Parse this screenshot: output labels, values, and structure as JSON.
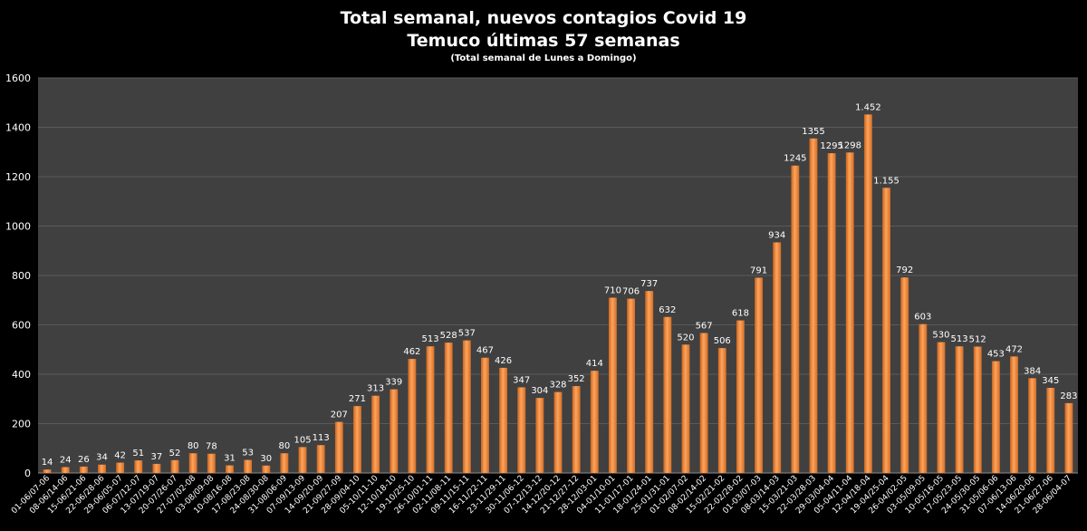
{
  "chart_data": {
    "type": "bar",
    "title": "Total semanal, nuevos contagios Covid 19",
    "subtitle": "Temuco últimas 57 semanas",
    "note": "(Total semanal de Lunes a Domingo)",
    "xlabel": "",
    "ylabel": "",
    "ylim": [
      0,
      1600
    ],
    "yticks": [
      "0",
      "200",
      "400",
      "600",
      "800",
      "1000",
      "1200",
      "1400",
      "1600"
    ],
    "grid": true,
    "legend": "none",
    "bar_color": "#F5873D",
    "plot_background": "#404040",
    "page_background": "#000000",
    "categories": [
      "01-06/07-06",
      "08-06/14-06",
      "15-06/21-06",
      "22-06/28-06",
      "29-06/05-07",
      "06-07/12-07",
      "13-07/19-07",
      "20-07/26-07",
      "27-07/02-08",
      "03-08/09-08",
      "10-08/16-08",
      "17-08/23-08",
      "24-08/30-08",
      "31-08/06-09",
      "07-09/13-09",
      "14-09/20-09",
      "21-09/27-09",
      "28-09/04-10",
      "05-10/11-10",
      "12-10/18-10",
      "19-10/25-10",
      "26-10/01-11",
      "02-11/08-11",
      "09-11/15-11",
      "16-11/22-11",
      "23-11/29-11",
      "30-11/06-12",
      "07-12/13-12",
      "14-12/20-12",
      "21-12/27-12",
      "28-12/03-01",
      "04-01/10-01",
      "11-01/17-01",
      "18-01/24-01",
      "25-01/31-01",
      "01-02/07-02",
      "08-02/14-02",
      "15-02/21-02",
      "22-02/28-02",
      "01-03/07-03",
      "08-03/14-03",
      "15-03/21-03",
      "22-03/28-03",
      "29-03/04-04",
      "05-04/11-04",
      "12-04/18-04",
      "19-04/25-04",
      "26-04/02-05",
      "03-05/09-05",
      "10-05/16-05",
      "17-05/23-05",
      "24-05/30-05",
      "31-05/06-06",
      "07-06/13-06",
      "14-06/20-06",
      "21-06/27-06",
      "28-06/04-07"
    ],
    "values": [
      14,
      24,
      26,
      34,
      42,
      51,
      37,
      52,
      80,
      78,
      31,
      53,
      30,
      80,
      105,
      113,
      207,
      271,
      313,
      339,
      462,
      513,
      528,
      537,
      467,
      426,
      347,
      304,
      328,
      352,
      414,
      710,
      706,
      737,
      632,
      520,
      567,
      506,
      618,
      791,
      934,
      1245,
      1355,
      1295,
      1298,
      1452,
      1155,
      792,
      603,
      530,
      513,
      512,
      453,
      472,
      384,
      345,
      283
    ],
    "labels": [
      "14",
      "24",
      "26",
      "34",
      "42",
      "51",
      "37",
      "52",
      "80",
      "78",
      "31",
      "53",
      "30",
      "80",
      "105",
      "113",
      "207",
      "271",
      "313",
      "339",
      "462",
      "513",
      "528",
      "537",
      "467",
      "426",
      "347",
      "304",
      "328",
      "352",
      "414",
      "710",
      "706",
      "737",
      "632",
      "520",
      "567",
      "506",
      "618",
      "791",
      "934",
      "1245",
      "1355",
      "1295",
      "1298",
      "1.452",
      "1.155",
      "792",
      "603",
      "530",
      "513",
      "512",
      "453",
      "472",
      "384",
      "345",
      "283"
    ]
  }
}
